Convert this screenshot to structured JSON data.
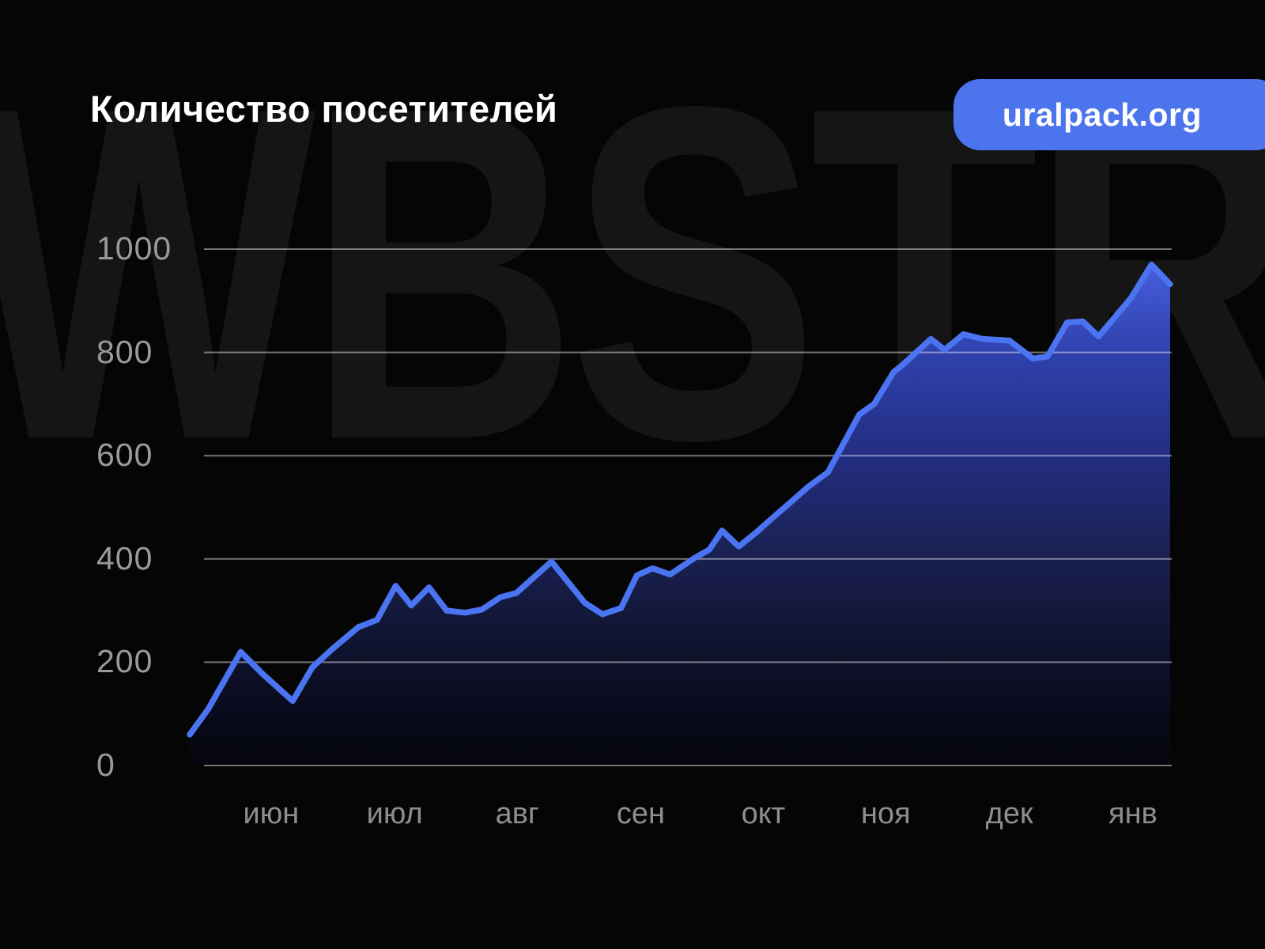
{
  "header": {
    "title": "Количество посетителей",
    "badge_label": "uralpack.org"
  },
  "watermark_text": "WBSTR",
  "colors": {
    "background": "#050505",
    "watermark": "#151515",
    "title_text": "#ffffff",
    "badge_bg": "#4c74ec",
    "badge_text": "#ffffff",
    "line": "#4b74f2",
    "grid": "rgba(255,255,255,0.45)",
    "y_axis_text": "#9a9a9e",
    "x_axis_text": "#8e8e92",
    "area_stops": [
      [
        0,
        "#4b63e4"
      ],
      [
        0.2,
        "#2f41ad"
      ],
      [
        0.4,
        "#232e82"
      ],
      [
        0.6,
        "#19204f"
      ],
      [
        0.8,
        "#0d1129"
      ],
      [
        1,
        "#04050e"
      ]
    ]
  },
  "chart_data": {
    "type": "area",
    "title": "Количество посетителей",
    "xlabel": "",
    "ylabel": "",
    "grid": true,
    "legend": "none",
    "y_axis": {
      "min": 0,
      "max": 1000,
      "ticks": [
        0,
        200,
        400,
        600,
        800,
        1000
      ],
      "tick_labels": [
        "0",
        "200",
        "400",
        "600",
        "800",
        "1000"
      ]
    },
    "x_axis": {
      "tick_labels": [
        "июн",
        "июл",
        "авг",
        "сен",
        "окт",
        "ноя",
        "дек",
        "янв"
      ],
      "tick_percents": [
        8.3,
        20.9,
        33.4,
        46.0,
        58.5,
        71.0,
        83.6,
        96.2
      ]
    },
    "series": [
      {
        "name": "Количество посетителей",
        "points": [
          [
            0,
            60
          ],
          [
            1.9,
            110
          ],
          [
            5.2,
            220
          ],
          [
            7.4,
            178
          ],
          [
            10.5,
            125
          ],
          [
            12.5,
            190
          ],
          [
            14.5,
            225
          ],
          [
            17.2,
            268
          ],
          [
            19.1,
            282
          ],
          [
            21.0,
            348
          ],
          [
            22.6,
            310
          ],
          [
            24.4,
            345
          ],
          [
            26.2,
            300
          ],
          [
            28.1,
            296
          ],
          [
            29.8,
            302
          ],
          [
            31.7,
            326
          ],
          [
            33.3,
            334
          ],
          [
            36.9,
            395
          ],
          [
            40.3,
            315
          ],
          [
            42.1,
            293
          ],
          [
            44.0,
            305
          ],
          [
            45.6,
            368
          ],
          [
            47.2,
            382
          ],
          [
            49.0,
            370
          ],
          [
            51.5,
            402
          ],
          [
            53.0,
            418
          ],
          [
            54.3,
            455
          ],
          [
            56.0,
            424
          ],
          [
            57.7,
            450
          ],
          [
            59.3,
            477
          ],
          [
            61.3,
            510
          ],
          [
            63.1,
            540
          ],
          [
            65.1,
            568
          ],
          [
            68.3,
            680
          ],
          [
            69.8,
            700
          ],
          [
            71.8,
            762
          ],
          [
            72.6,
            774
          ],
          [
            75.6,
            826
          ],
          [
            77.0,
            805
          ],
          [
            78.9,
            835
          ],
          [
            80.9,
            826
          ],
          [
            83.6,
            823
          ],
          [
            86.0,
            788
          ],
          [
            87.5,
            792
          ],
          [
            89.5,
            858
          ],
          [
            91.1,
            860
          ],
          [
            92.7,
            831
          ],
          [
            96.0,
            905
          ],
          [
            98.1,
            970
          ],
          [
            100,
            932
          ]
        ]
      }
    ]
  }
}
